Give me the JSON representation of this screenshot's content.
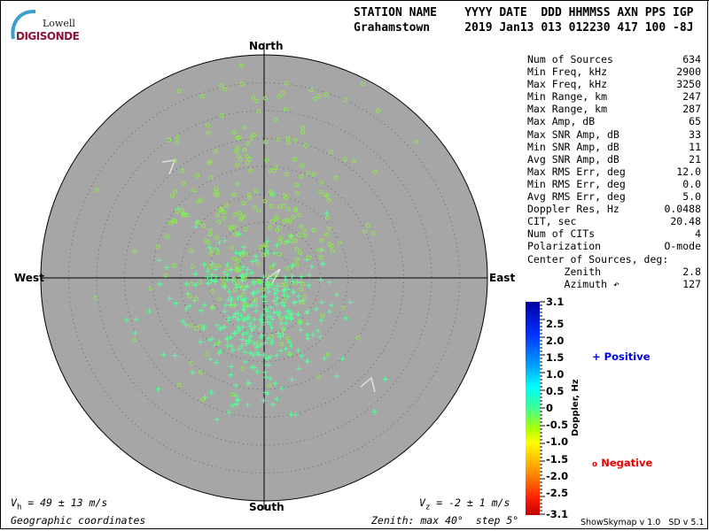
{
  "logo": {
    "line1": "Lowell",
    "line2": "DIGISONDE"
  },
  "header": {
    "labels": "STATION NAME    YYYY DATE  DDD HHMMSS AXN PPS IGP",
    "values": "Grahamstown     2019 Jan13 013 012230 417 100 -8J"
  },
  "directions": {
    "north": "North",
    "south": "South",
    "east": "East",
    "west": "West"
  },
  "stats": [
    {
      "label": "Num of Sources",
      "value": "634"
    },
    {
      "label": "Min Freq, kHz",
      "value": "2900"
    },
    {
      "label": "Max Freq, kHz",
      "value": "3250"
    },
    {
      "label": "Min Range, km",
      "value": "247"
    },
    {
      "label": "Max Range, km",
      "value": "287"
    },
    {
      "label": "Max Amp, dB",
      "value": "65"
    },
    {
      "label": "Max SNR Amp, dB",
      "value": "33"
    },
    {
      "label": "Min SNR Amp, dB",
      "value": "11"
    },
    {
      "label": "Avg SNR Amp, dB",
      "value": "21"
    },
    {
      "label": "Max RMS Err, deg",
      "value": "12.0"
    },
    {
      "label": "Min RMS Err, deg",
      "value": "0.0"
    },
    {
      "label": "Avg RMS Err, deg",
      "value": "5.0"
    },
    {
      "label": "Doppler Res, Hz",
      "value": "0.0488"
    },
    {
      "label": "CIT, sec",
      "value": "20.48"
    },
    {
      "label": "Num of CITs",
      "value": "4"
    },
    {
      "label": "Polarization",
      "value": "O-mode"
    },
    {
      "label": "Center of Sources, deg:",
      "value": ""
    },
    {
      "label": "      Zenith",
      "value": "2.8"
    },
    {
      "label": "      Azimuth ↶",
      "value": "127"
    }
  ],
  "colorbar": {
    "title": "Doppler, Hz",
    "ticks": [
      "3.1",
      "2.5",
      "2.0",
      "1.5",
      "1.0",
      "0.5",
      "0",
      "-0.5",
      "-1.0",
      "-1.5",
      "-2.0",
      "-2.5",
      "-3.1"
    ],
    "range": [
      -3.1,
      3.1
    ]
  },
  "legend": {
    "positive": {
      "symbol": "+",
      "label": "Positive",
      "color": "#0000ee"
    },
    "negative": {
      "symbol": "o",
      "label": "Negative",
      "color": "#ee0000"
    }
  },
  "footer": {
    "vh": "V",
    "vh_sub": "h",
    "vh_value": " = 49 ± 13 m/s",
    "vz": "V",
    "vz_sub": "z",
    "vz_value": " = -2 ± 1 m/s",
    "coords": "Geographic coordinates",
    "zenith": "Zenith: max 40°  step 5°",
    "version": "ShowSkymap v 1.0   SD v 5.1"
  },
  "chart_data": {
    "type": "scatter",
    "projection": "polar-skymap",
    "zenith_max_deg": 40,
    "zenith_step_deg": 5,
    "num_sources": 634,
    "positive_color": "#55ff99",
    "negative_color": "#88ee44",
    "plot_background": "#a6a6a6",
    "center_of_sources": {
      "zenith_deg": 2.8,
      "azimuth_deg": 127
    }
  }
}
